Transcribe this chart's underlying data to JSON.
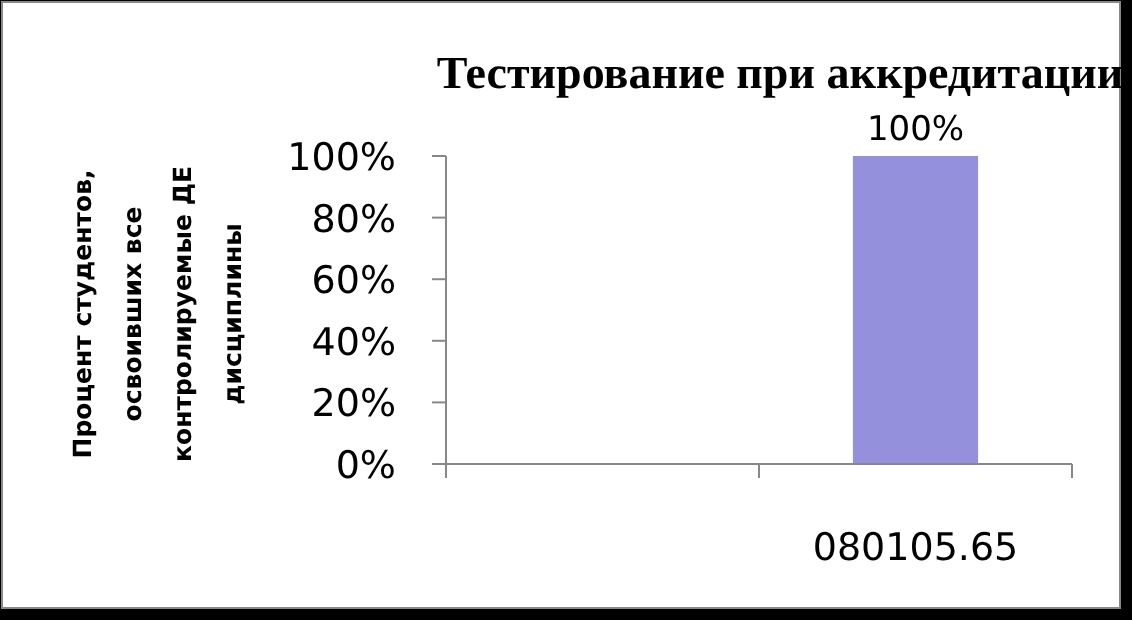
{
  "chart_data": {
    "type": "bar",
    "title": "Тестирование при аккредитации",
    "ylabel": "Процент студентов,\nосвоивших все\nконтролируемые ДЕ\nдисциплины",
    "categories": [
      null,
      "080105.65"
    ],
    "values": [
      null,
      100
    ],
    "color": "#9590dc",
    "value_labels": [
      null,
      "100%"
    ],
    "ylim": [
      0,
      100
    ],
    "yticks": [
      {
        "value": 0,
        "label": "0%"
      },
      {
        "value": 20,
        "label": "20%"
      },
      {
        "value": 40,
        "label": "40%"
      },
      {
        "value": 60,
        "label": "60%"
      },
      {
        "value": 80,
        "label": "80%"
      },
      {
        "value": 100,
        "label": "100%"
      }
    ]
  }
}
